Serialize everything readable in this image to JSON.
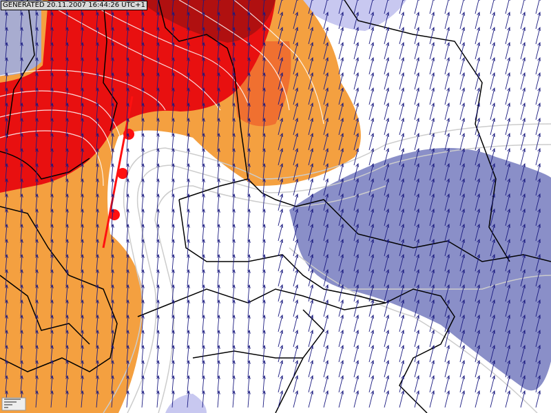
{
  "header": {
    "generated": "GENERATED 20.11.2007 16:44:26 UTC+1"
  }
}
